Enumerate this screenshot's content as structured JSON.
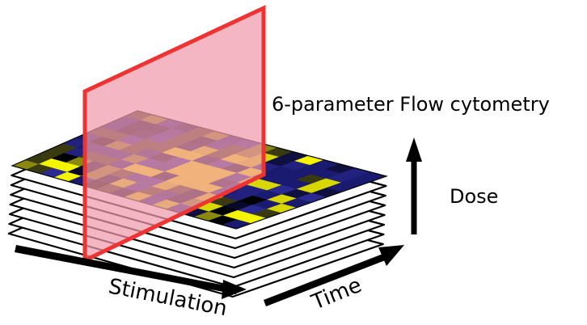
{
  "labels": {
    "flow": "6-parameter Flow cytometry",
    "dose": "Dose",
    "stimulation": "Stimulation",
    "time": "Time"
  },
  "colors": {
    "plane_edge": "#ee3333",
    "plane_fill": "#f09aaa",
    "heatmap_low": "#1a1a6e",
    "heatmap_mid": "#000000",
    "heatmap_high": "#f0f000",
    "arrow": "#000000"
  },
  "heatmap": {
    "rows": 10,
    "cols": 16
  },
  "stack": {
    "sheets": 8
  }
}
